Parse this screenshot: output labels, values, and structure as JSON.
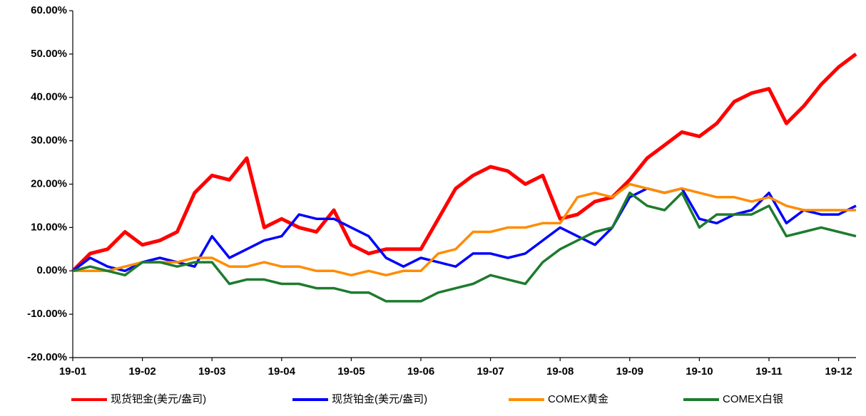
{
  "chart_data": {
    "type": "line",
    "categories": [
      "19-01",
      null,
      null,
      null,
      "19-02",
      null,
      null,
      null,
      "19-03",
      null,
      null,
      null,
      "19-04",
      null,
      null,
      null,
      "19-05",
      null,
      null,
      null,
      "19-06",
      null,
      null,
      null,
      "19-07",
      null,
      null,
      null,
      "19-08",
      null,
      null,
      null,
      "19-09",
      null,
      null,
      null,
      "19-10",
      null,
      null,
      null,
      "19-11",
      null,
      null,
      null,
      "19-12",
      null
    ],
    "series": [
      {
        "name": "现货钯金(美元/盎司)",
        "color": "#ff0000",
        "values": [
          0,
          4,
          5,
          9,
          6,
          7,
          9,
          18,
          22,
          21,
          26,
          10,
          12,
          10,
          9,
          14,
          6,
          4,
          5,
          5,
          5,
          12,
          19,
          22,
          24,
          23,
          20,
          22,
          12,
          13,
          16,
          17,
          21,
          26,
          29,
          32,
          31,
          34,
          39,
          41,
          42,
          34,
          38,
          43,
          47,
          50
        ]
      },
      {
        "name": "现货铂金(美元/盎司)",
        "color": "#0000ff",
        "values": [
          0,
          3,
          1,
          0,
          2,
          3,
          2,
          1,
          8,
          3,
          5,
          7,
          8,
          13,
          12,
          12,
          10,
          8,
          3,
          1,
          3,
          2,
          1,
          4,
          4,
          3,
          4,
          7,
          10,
          8,
          6,
          10,
          17,
          19,
          18,
          19,
          12,
          11,
          13,
          14,
          18,
          11,
          14,
          13,
          13,
          15
        ]
      },
      {
        "name": "COMEX黄金",
        "color": "#ff8c00",
        "values": [
          0,
          0,
          0,
          1,
          2,
          2,
          2,
          3,
          3,
          1,
          1,
          2,
          1,
          1,
          0,
          0,
          -1,
          0,
          -1,
          0,
          0,
          4,
          5,
          9,
          9,
          10,
          10,
          11,
          11,
          17,
          18,
          17,
          20,
          19,
          18,
          19,
          18,
          17,
          17,
          16,
          17,
          15,
          14,
          14,
          14,
          14
        ]
      },
      {
        "name": "COMEX白银",
        "color": "#1e7b2e",
        "values": [
          0,
          1,
          0,
          -1,
          2,
          2,
          1,
          2,
          2,
          -3,
          -2,
          -2,
          -3,
          -3,
          -4,
          -4,
          -5,
          -5,
          -7,
          -7,
          -7,
          -5,
          -4,
          -3,
          -1,
          -2,
          -3,
          2,
          5,
          7,
          9,
          10,
          18,
          15,
          14,
          18,
          10,
          13,
          13,
          13,
          15,
          8,
          9,
          10,
          9,
          8
        ]
      }
    ],
    "ylim": [
      -20,
      60
    ],
    "yticks": [
      {
        "value": -20,
        "label": "-20.00%"
      },
      {
        "value": -10,
        "label": "-10.00%"
      },
      {
        "value": 0,
        "label": "0.00%"
      },
      {
        "value": 10,
        "label": "10.00%"
      },
      {
        "value": 20,
        "label": "20.00%"
      },
      {
        "value": 30,
        "label": "30.00%"
      },
      {
        "value": 40,
        "label": "40.00%"
      },
      {
        "value": 50,
        "label": "50.00%"
      },
      {
        "value": 60,
        "label": "60.00%"
      }
    ],
    "grid": false,
    "legend": "bottom"
  }
}
